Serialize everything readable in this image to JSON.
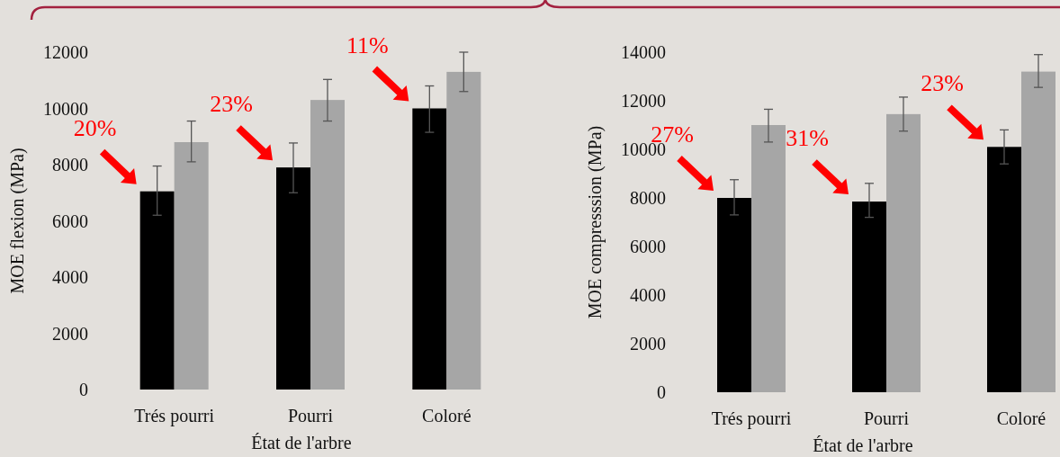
{
  "chart_data": [
    {
      "type": "bar",
      "ylabel": "MOE flexion (MPa)",
      "xlabel": "État de l'arbre",
      "categories": [
        "Trés pourri",
        "Pourri",
        "Coloré"
      ],
      "ylim": [
        0,
        12000
      ],
      "yticks": [
        0,
        2000,
        4000,
        6000,
        8000,
        10000,
        12000
      ],
      "series": [
        {
          "color": "#000000",
          "values": [
            7050,
            7900,
            10000
          ],
          "errors": [
            [
              6200,
              7950
            ],
            [
              7000,
              8770
            ],
            [
              9150,
              10800
            ]
          ]
        },
        {
          "color": "#a6a6a6",
          "values": [
            8800,
            10300,
            11300
          ],
          "errors": [
            [
              8100,
              9550
            ],
            [
              9550,
              11030
            ],
            [
              10600,
              12000
            ]
          ]
        }
      ],
      "annotations": [
        "20%",
        "23%",
        "11%"
      ]
    },
    {
      "type": "bar",
      "ylabel": "MOE compresssion (MPa)",
      "xlabel": "État de l'arbre",
      "categories": [
        "Trés pourri",
        "Pourri",
        "Coloré"
      ],
      "ylim": [
        0,
        14000
      ],
      "yticks": [
        0,
        2000,
        4000,
        6000,
        8000,
        10000,
        12000,
        14000
      ],
      "series": [
        {
          "color": "#000000",
          "values": [
            8000,
            7850,
            10100
          ],
          "errors": [
            [
              7300,
              8750
            ],
            [
              7200,
              8600
            ],
            [
              9400,
              10800
            ]
          ]
        },
        {
          "color": "#a6a6a6",
          "values": [
            11000,
            11450,
            13200
          ],
          "errors": [
            [
              10300,
              11650
            ],
            [
              10750,
              12150
            ],
            [
              12550,
              13900
            ]
          ]
        }
      ],
      "annotations": [
        "27%",
        "31%",
        "23%"
      ]
    }
  ]
}
